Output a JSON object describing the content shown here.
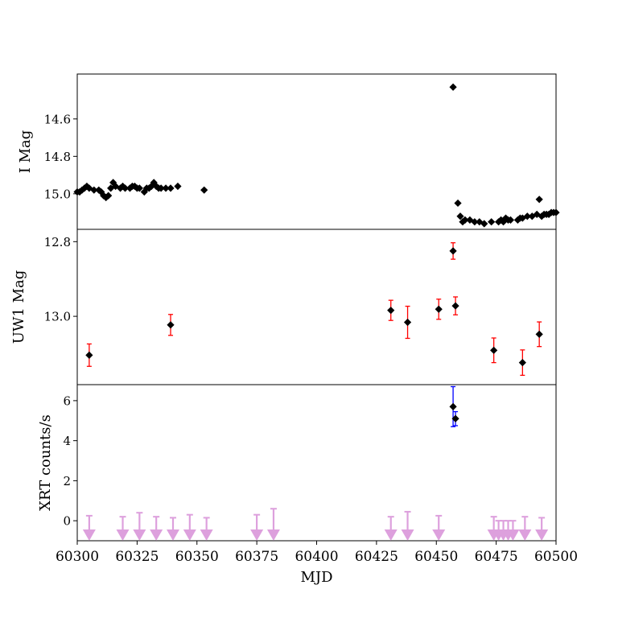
{
  "chart_data": {
    "type": "scatter",
    "xlabel": "MJD",
    "xlim": [
      60300,
      60500
    ],
    "xticks": [
      60300,
      60325,
      60350,
      60375,
      60400,
      60425,
      60450,
      60475,
      60500
    ],
    "colors": {
      "points": "#000000",
      "uw1_err": "#ff0000",
      "xrt_err": "#0000ff",
      "upper_limits": "#dda0dd"
    },
    "panels": [
      {
        "id": "imag",
        "ylabel": "I Mag",
        "ylim": [
          15.19,
          14.36
        ],
        "yticks": [
          14.6,
          14.8,
          15.0
        ],
        "series": [
          {
            "marker": "diamond",
            "x": [
              60300,
              60301,
              60302,
              60303,
              60304,
              60305,
              60307,
              60309,
              60310,
              60311,
              60312,
              60313,
              60314,
              60315,
              60316,
              60318,
              60319,
              60320,
              60322,
              60323,
              60324,
              60325,
              60326,
              60328,
              60329,
              60330,
              60331,
              60332,
              60333,
              60334,
              60335,
              60337,
              60339,
              60342,
              60353,
              60457,
              60459,
              60460,
              60461,
              60462,
              60464,
              60466,
              60468,
              60470,
              60473,
              60476,
              60477,
              60478,
              60479,
              60480,
              60481,
              60484,
              60485,
              60486,
              60488,
              60490,
              60492,
              60493,
              60494,
              60495,
              60496,
              60497,
              60498,
              60499,
              60500
            ],
            "y": [
              14.99,
              14.99,
              14.98,
              14.97,
              14.96,
              14.97,
              14.98,
              14.98,
              14.99,
              15.01,
              15.02,
              15.01,
              14.97,
              14.94,
              14.96,
              14.97,
              14.96,
              14.97,
              14.97,
              14.96,
              14.96,
              14.97,
              14.97,
              14.99,
              14.97,
              14.97,
              14.96,
              14.94,
              14.96,
              14.97,
              14.97,
              14.97,
              14.97,
              14.96,
              14.98,
              14.43,
              15.05,
              15.12,
              15.15,
              15.14,
              15.14,
              15.15,
              15.15,
              15.16,
              15.15,
              15.15,
              15.14,
              15.15,
              15.13,
              15.14,
              15.14,
              15.14,
              15.13,
              15.13,
              15.12,
              15.12,
              15.11,
              15.03,
              15.12,
              15.11,
              15.11,
              15.11,
              15.1,
              15.1,
              15.1
            ]
          }
        ]
      },
      {
        "id": "uw1",
        "ylabel": "UW1 Mag",
        "ylim": [
          13.183,
          12.767
        ],
        "yticks": [
          12.8,
          13.0
        ],
        "series": [
          {
            "marker": "diamond",
            "x": [
              60305,
              60339,
              60431,
              60438,
              60451,
              60457,
              60458,
              60474,
              60486,
              60493
            ],
            "y": [
              13.104,
              13.023,
              12.984,
              13.016,
              12.981,
              12.825,
              12.972,
              13.091,
              13.124,
              13.048
            ],
            "err": [
              0.03,
              0.028,
              0.027,
              0.043,
              0.027,
              0.022,
              0.024,
              0.033,
              0.034,
              0.033
            ]
          }
        ]
      },
      {
        "id": "xrt",
        "ylabel": "XRT counts/s",
        "ylim": [
          -1.0,
          6.8
        ],
        "yticks": [
          0,
          2,
          4,
          6
        ],
        "detections": {
          "marker": "diamond",
          "x": [
            60457,
            60458
          ],
          "y": [
            5.7,
            5.1
          ],
          "err": [
            1.0,
            0.35
          ]
        },
        "upper_limits": {
          "x": [
            60305,
            60319,
            60326,
            60333,
            60340,
            60347,
            60354,
            60375,
            60382,
            60431,
            60438,
            60451,
            60474,
            60476,
            60478,
            60480,
            60482,
            60487,
            60494
          ],
          "y": [
            0.25,
            0.2,
            0.4,
            0.2,
            0.15,
            0.3,
            0.15,
            0.3,
            0.6,
            0.2,
            0.45,
            0.25,
            0.2,
            0.0,
            0.0,
            0.0,
            0.0,
            0.2,
            0.15
          ]
        }
      }
    ]
  }
}
